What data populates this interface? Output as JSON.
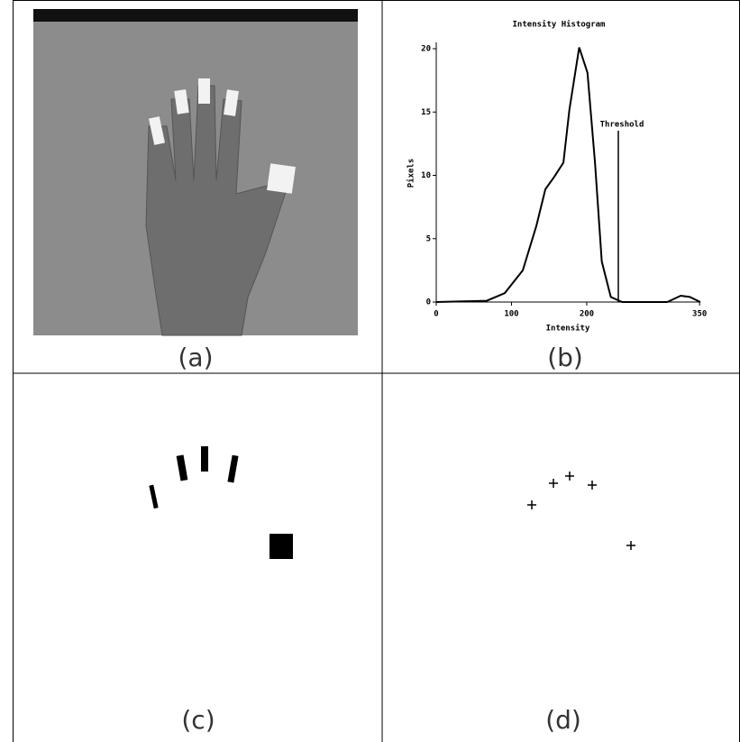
{
  "panels": {
    "a": {
      "caption": "(a)"
    },
    "c": {
      "caption": "(c)"
    },
    "d": {
      "caption": "(d)"
    }
  },
  "chart_data": {
    "type": "line",
    "title": "Intensity Histogram",
    "x_label": "Intensity",
    "y_label": "Pixels",
    "caption": "(b)",
    "annotation": "Threshold",
    "threshold": 242,
    "x": [
      0,
      67,
      91,
      115,
      133,
      145,
      157,
      169,
      177,
      190,
      201,
      211,
      220,
      232,
      247,
      307,
      325,
      337,
      351
    ],
    "series": [
      {
        "color": "#000000",
        "values": [
          0,
          0.1,
          0.7,
          2.5,
          6,
          8.9,
          9.9,
          11,
          15.2,
          20.1,
          18.1,
          11,
          3.2,
          0.4,
          0,
          0,
          0.5,
          0.4,
          0
        ]
      }
    ],
    "xlim": [
      0,
      351
    ],
    "ylim": [
      0,
      20.5
    ],
    "xticks": [
      0,
      100,
      200,
      350
    ],
    "yticks": [
      0,
      5,
      10,
      15,
      20
    ]
  }
}
